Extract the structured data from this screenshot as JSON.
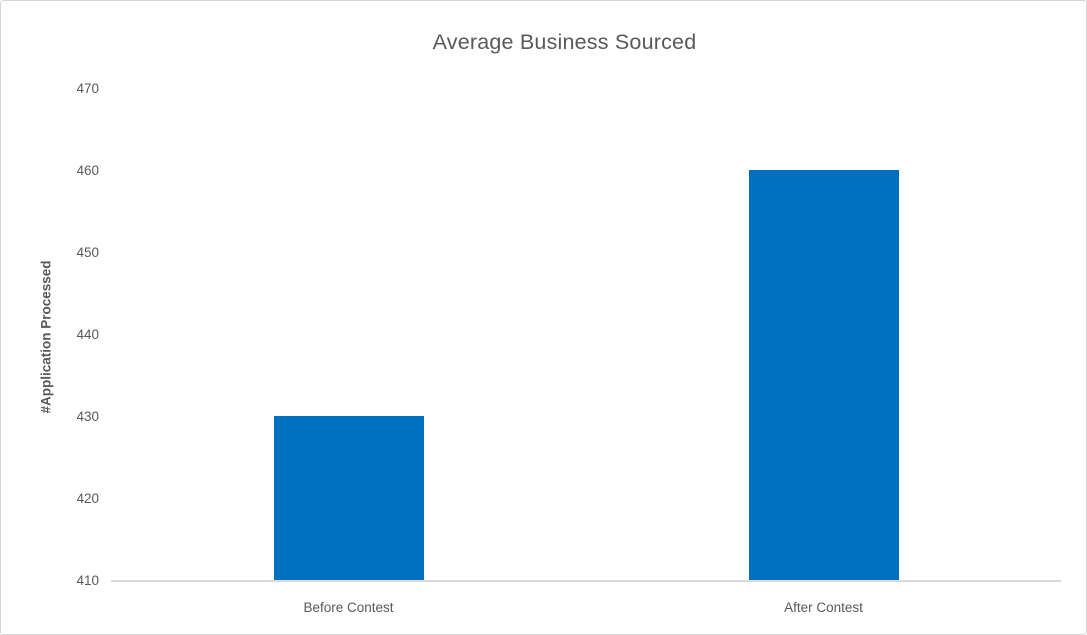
{
  "chart_data": {
    "type": "bar",
    "title": "Average Business Sourced",
    "xlabel": "",
    "ylabel": "#Application Processed",
    "categories": [
      "Before Contest",
      "After Contest"
    ],
    "values": [
      430,
      460
    ],
    "ylim": [
      410,
      470
    ],
    "ytick_step": 10,
    "ytick_labels": [
      "410",
      "420",
      "430",
      "440",
      "450",
      "460",
      "470"
    ],
    "grid": false,
    "legend": "none",
    "bar_color": "#0070C0",
    "text_color": "#595959",
    "axis_line_color": "#D9D9D9"
  }
}
